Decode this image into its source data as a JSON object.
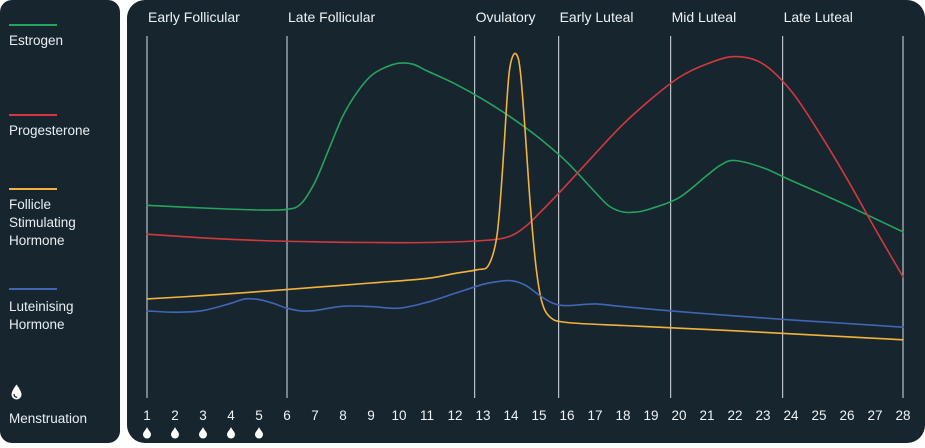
{
  "legend": {
    "items": [
      {
        "label": "Estrogen",
        "color": "#27a35e"
      },
      {
        "label": "Progesterone",
        "color": "#d2393d"
      },
      {
        "label": "Follicle Stimulating Hormone",
        "color": "#f1b33e"
      },
      {
        "label": "Luteinising Hormone",
        "color": "#3f67b5"
      }
    ],
    "menstruation_label": "Menstruation",
    "menstruation_icon": "drop-icon"
  },
  "chart_data": {
    "type": "line",
    "x": [
      1,
      2,
      3,
      4,
      5,
      6,
      7,
      8,
      9,
      10,
      11,
      12,
      13,
      14,
      15,
      16,
      17,
      18,
      19,
      20,
      21,
      22,
      23,
      24,
      25,
      26,
      27,
      28
    ],
    "xlim": [
      1,
      28
    ],
    "ylim": [
      0,
      100
    ],
    "tick_labels": [
      "1",
      "2",
      "3",
      "4",
      "5",
      "6",
      "7",
      "8",
      "9",
      "10",
      "11",
      "12",
      "13",
      "14",
      "15",
      "16",
      "17",
      "18",
      "19",
      "20",
      "21",
      "22",
      "23",
      "24",
      "25",
      "26",
      "27",
      "28"
    ],
    "phases": [
      {
        "label": "Early Follicular",
        "start": 1
      },
      {
        "label": "Late Follicular",
        "start": 6
      },
      {
        "label": "Ovulatory",
        "start": 12.7
      },
      {
        "label": "Early Luteal",
        "start": 15.7
      },
      {
        "label": "Mid Luteal",
        "start": 19.7
      },
      {
        "label": "Late Luteal",
        "start": 23.7
      },
      {
        "label": "",
        "start": 28
      }
    ],
    "menstruation_days": [
      1,
      2,
      3,
      4,
      5
    ],
    "series": [
      {
        "name": "Estrogen",
        "color": "#27a35e",
        "points": [
          [
            1,
            49
          ],
          [
            3,
            48.2
          ],
          [
            5,
            47.6
          ],
          [
            6,
            47.8
          ],
          [
            6.5,
            49.5
          ],
          [
            7,
            56
          ],
          [
            7.5,
            66
          ],
          [
            8,
            76
          ],
          [
            8.5,
            83
          ],
          [
            9,
            88
          ],
          [
            9.5,
            90.5
          ],
          [
            10,
            91.8
          ],
          [
            10.5,
            91.5
          ],
          [
            11,
            89.5
          ],
          [
            12,
            85.6
          ],
          [
            13,
            80.9
          ],
          [
            14,
            75.5
          ],
          [
            15,
            69.3
          ],
          [
            16,
            62
          ],
          [
            17,
            53
          ],
          [
            17.5,
            48.8
          ],
          [
            18,
            47
          ],
          [
            18.5,
            47
          ],
          [
            19,
            48
          ],
          [
            20,
            51.3
          ],
          [
            21,
            58
          ],
          [
            21.5,
            61.2
          ],
          [
            22,
            62.5
          ],
          [
            23,
            60.3
          ],
          [
            24,
            56.5
          ],
          [
            25,
            52.8
          ],
          [
            26,
            49
          ],
          [
            27,
            45
          ],
          [
            28,
            41
          ]
        ]
      },
      {
        "name": "Progesterone",
        "color": "#d2393d",
        "points": [
          [
            1,
            40.3
          ],
          [
            3,
            39.2
          ],
          [
            5,
            38.4
          ],
          [
            7,
            38
          ],
          [
            9,
            37.8
          ],
          [
            11,
            37.8
          ],
          [
            13,
            38.4
          ],
          [
            13.9,
            39.5
          ],
          [
            14.5,
            42.5
          ],
          [
            15,
            46.5
          ],
          [
            16,
            55.3
          ],
          [
            17,
            64.5
          ],
          [
            18,
            73.4
          ],
          [
            19,
            81
          ],
          [
            20,
            87.5
          ],
          [
            21,
            91.6
          ],
          [
            22,
            93.8
          ],
          [
            23,
            91.6
          ],
          [
            24,
            83.5
          ],
          [
            25,
            71
          ],
          [
            26,
            57
          ],
          [
            27,
            42
          ],
          [
            28,
            27.5
          ]
        ]
      },
      {
        "name": "Follicle Stimulating Hormone",
        "color": "#f1b33e",
        "points": [
          [
            1,
            20.8
          ],
          [
            3,
            21.8
          ],
          [
            5,
            23
          ],
          [
            7,
            24.3
          ],
          [
            9,
            25.6
          ],
          [
            11,
            27
          ],
          [
            12,
            28.5
          ],
          [
            12.8,
            29.6
          ],
          [
            13.2,
            31
          ],
          [
            13.5,
            40
          ],
          [
            13.7,
            60
          ],
          [
            13.85,
            80
          ],
          [
            13.95,
            90
          ],
          [
            14.1,
            94.5
          ],
          [
            14.25,
            93.5
          ],
          [
            14.35,
            88
          ],
          [
            14.5,
            72
          ],
          [
            14.7,
            48
          ],
          [
            14.9,
            30
          ],
          [
            15.1,
            20
          ],
          [
            15.4,
            15.3
          ],
          [
            16,
            13.7
          ],
          [
            18,
            12.8
          ],
          [
            20,
            12
          ],
          [
            22,
            11.2
          ],
          [
            24,
            10.3
          ],
          [
            26,
            9.4
          ],
          [
            28,
            8.5
          ]
        ]
      },
      {
        "name": "Luteinising Hormone",
        "color": "#3f67b5",
        "points": [
          [
            1,
            17.2
          ],
          [
            2,
            16.8
          ],
          [
            3,
            17.3
          ],
          [
            4,
            19.5
          ],
          [
            4.5,
            20.8
          ],
          [
            5,
            20.6
          ],
          [
            5.5,
            19.5
          ],
          [
            6,
            18
          ],
          [
            6.5,
            17.2
          ],
          [
            7,
            17.3
          ],
          [
            8,
            18.6
          ],
          [
            9,
            18.5
          ],
          [
            10,
            18
          ],
          [
            11,
            19.8
          ],
          [
            12,
            22.5
          ],
          [
            13,
            25.2
          ],
          [
            13.5,
            26
          ],
          [
            14,
            26.3
          ],
          [
            14.5,
            25
          ],
          [
            15,
            22
          ],
          [
            15.5,
            19.5
          ],
          [
            16,
            18.8
          ],
          [
            17,
            19.3
          ],
          [
            18,
            18.5
          ],
          [
            20,
            17
          ],
          [
            22,
            15.7
          ],
          [
            24,
            14.5
          ],
          [
            26,
            13.4
          ],
          [
            28,
            12.3
          ]
        ]
      }
    ]
  }
}
